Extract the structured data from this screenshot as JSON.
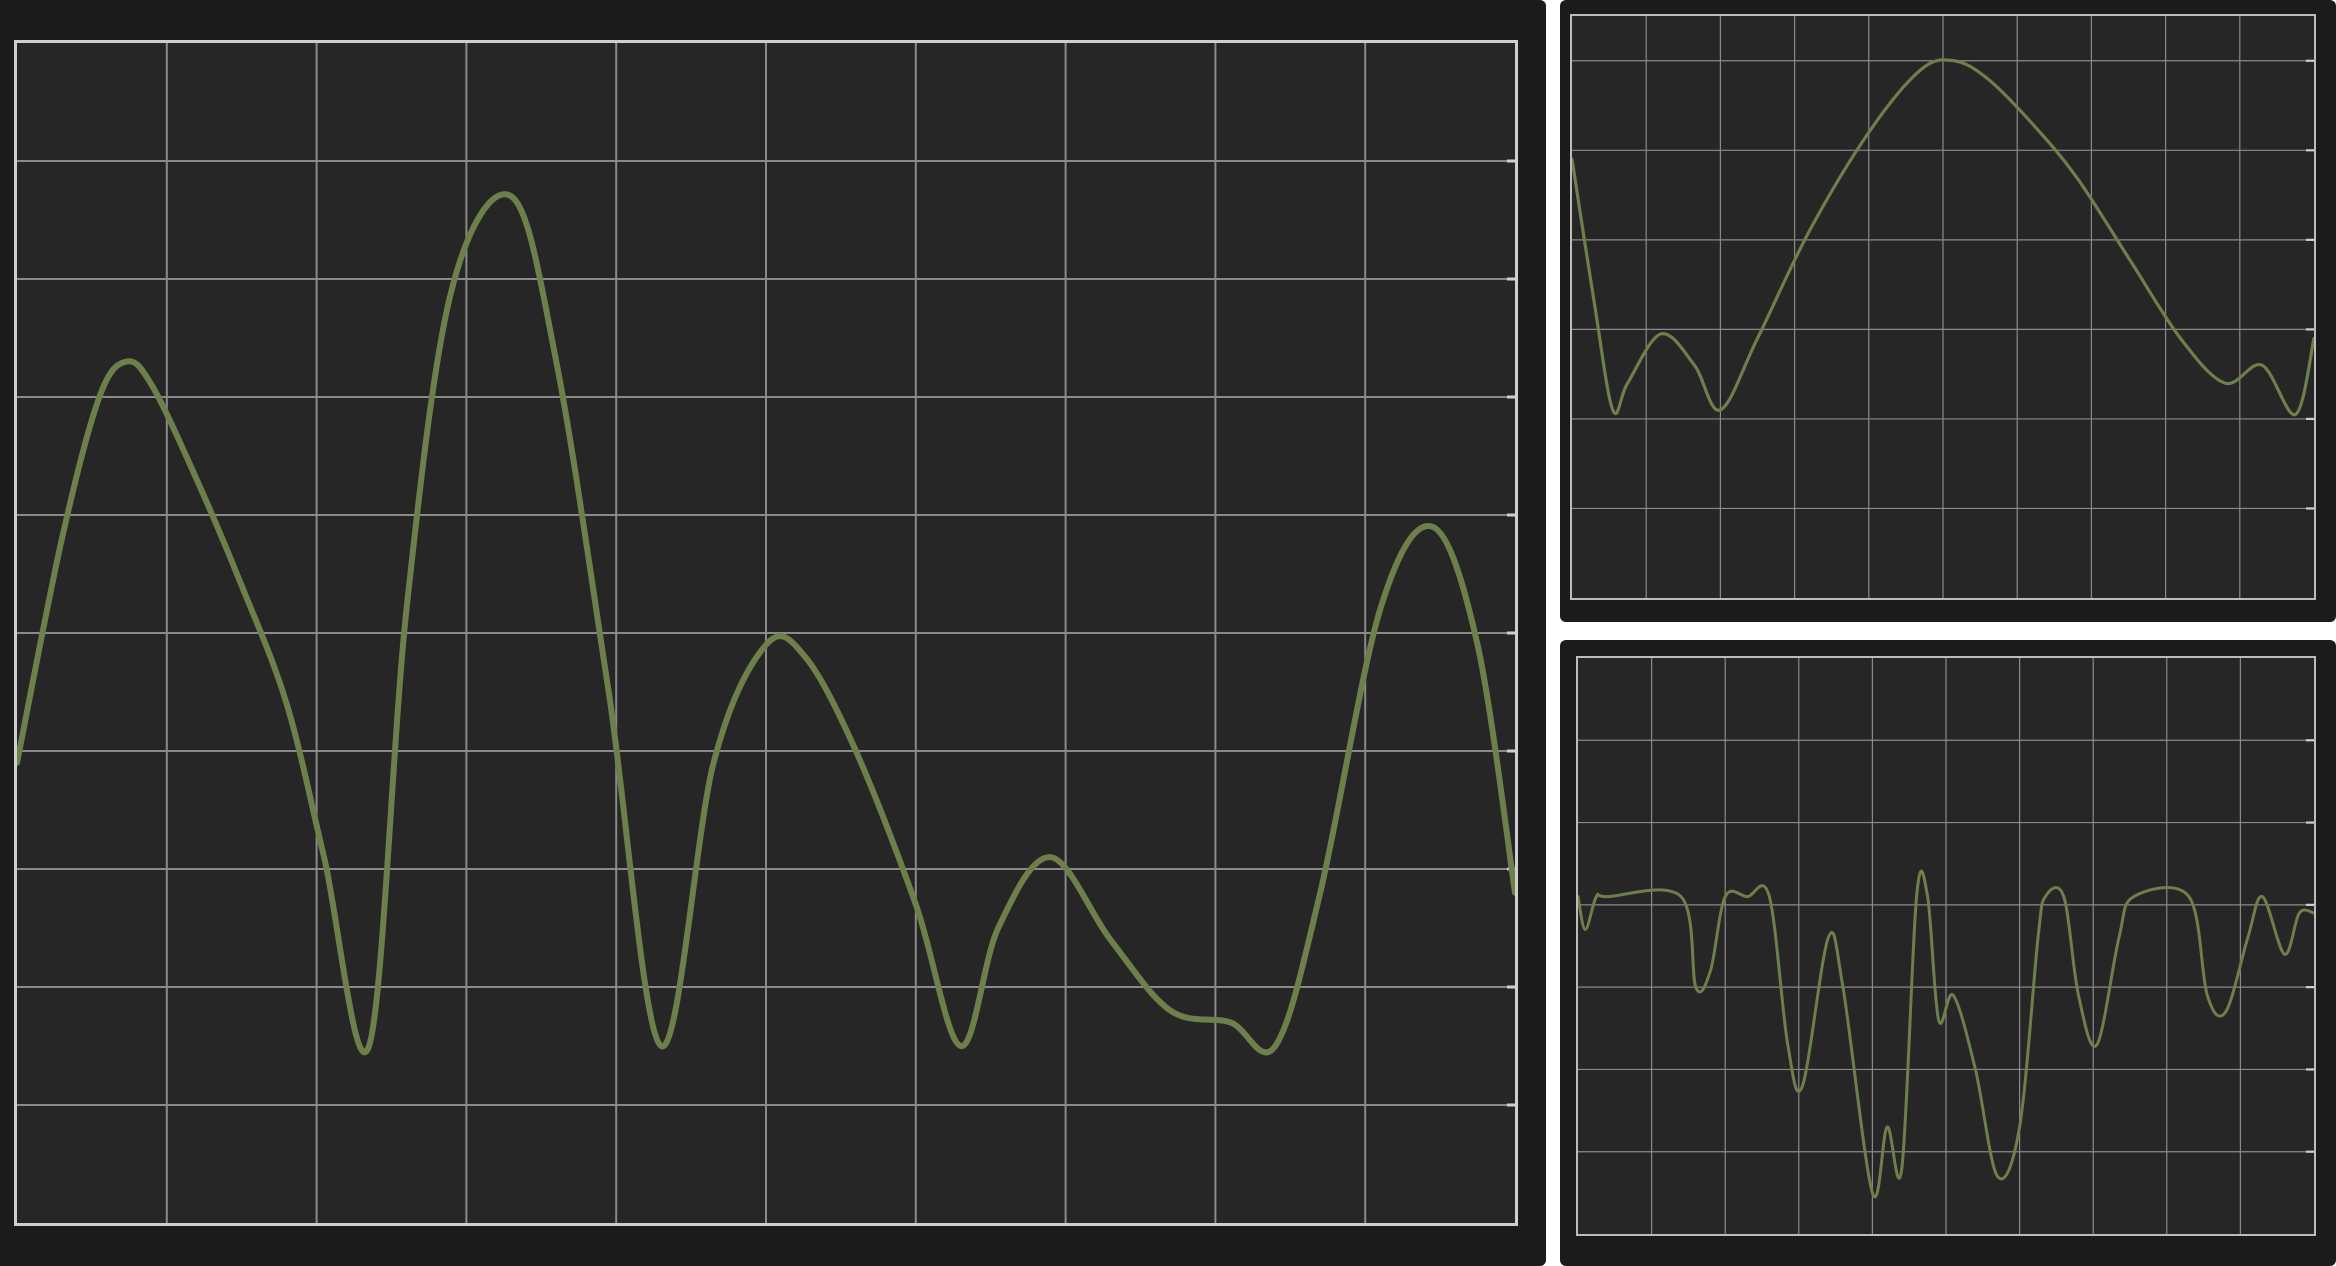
{
  "colors": {
    "background": "#1b1b1b",
    "plot_area": "#262626",
    "grid": "#8a8a8a",
    "frame": "#cfcfcf",
    "trace": "#6d7f4a"
  },
  "chart_data": [
    {
      "type": "line",
      "title": "",
      "xlabel": "",
      "ylabel": "",
      "xlim": [
        0,
        10
      ],
      "ylim": [
        0,
        10
      ],
      "grid": true,
      "legend": "none",
      "x_divisions": 10,
      "y_divisions": 10,
      "series": [
        {
          "values": [
            [
              0,
              3.9
            ],
            [
              0.3,
              5.8
            ],
            [
              0.55,
              7.0
            ],
            [
              0.73,
              7.3
            ],
            [
              0.9,
              7.1
            ],
            [
              1.2,
              6.3
            ],
            [
              1.5,
              5.4
            ],
            [
              1.8,
              4.4
            ],
            [
              2.05,
              3.1
            ],
            [
              2.35,
              1.5
            ],
            [
              2.6,
              5.2
            ],
            [
              2.9,
              7.9
            ],
            [
              3.3,
              8.7
            ],
            [
              3.6,
              7.3
            ],
            [
              3.95,
              4.5
            ],
            [
              4.3,
              1.5
            ],
            [
              4.65,
              3.9
            ],
            [
              5.0,
              4.9
            ],
            [
              5.26,
              4.8
            ],
            [
              5.6,
              4.0
            ],
            [
              6.0,
              2.7
            ],
            [
              6.3,
              1.5
            ],
            [
              6.55,
              2.5
            ],
            [
              6.9,
              3.1
            ],
            [
              7.3,
              2.4
            ],
            [
              7.7,
              1.8
            ],
            [
              8.1,
              1.7
            ],
            [
              8.4,
              1.5
            ],
            [
              8.7,
              2.8
            ],
            [
              9.1,
              5.2
            ],
            [
              9.45,
              5.9
            ],
            [
              9.75,
              4.9
            ],
            [
              10.0,
              2.8
            ]
          ]
        }
      ]
    },
    {
      "type": "line",
      "title": "",
      "xlabel": "",
      "ylabel": "",
      "xlim": [
        0,
        10
      ],
      "ylim": [
        0,
        6.5
      ],
      "grid": true,
      "legend": "none",
      "x_divisions": 10,
      "y_divisions": 6.5,
      "series": [
        {
          "values": [
            [
              0,
              4.9
            ],
            [
              0.3,
              3.3
            ],
            [
              0.55,
              2.1
            ],
            [
              0.75,
              2.4
            ],
            [
              1.2,
              2.95
            ],
            [
              1.65,
              2.6
            ],
            [
              2.0,
              2.1
            ],
            [
              2.5,
              2.9
            ],
            [
              3.2,
              4.1
            ],
            [
              4.0,
              5.2
            ],
            [
              4.7,
              5.9
            ],
            [
              5.15,
              6.0
            ],
            [
              5.6,
              5.8
            ],
            [
              6.2,
              5.3
            ],
            [
              6.8,
              4.7
            ],
            [
              7.5,
              3.8
            ],
            [
              8.2,
              2.9
            ],
            [
              8.8,
              2.4
            ],
            [
              9.3,
              2.6
            ],
            [
              9.75,
              2.05
            ],
            [
              10.0,
              2.9
            ]
          ]
        }
      ]
    },
    {
      "type": "line",
      "title": "",
      "xlabel": "",
      "ylabel": "",
      "xlim": [
        0,
        10
      ],
      "ylim": [
        0,
        7
      ],
      "grid": true,
      "legend": "none",
      "x_divisions": 10,
      "y_divisions": 7,
      "series": [
        {
          "values": [
            [
              0,
              4.1
            ],
            [
              0.1,
              3.7
            ],
            [
              0.25,
              4.1
            ],
            [
              0.4,
              4.1
            ],
            [
              1.4,
              4.1
            ],
            [
              1.6,
              3.0
            ],
            [
              1.8,
              3.2
            ],
            [
              2.0,
              4.1
            ],
            [
              2.3,
              4.1
            ],
            [
              2.6,
              4.1
            ],
            [
              2.85,
              2.3
            ],
            [
              3.05,
              1.8
            ],
            [
              3.4,
              3.6
            ],
            [
              3.6,
              3.0
            ],
            [
              4.0,
              0.5
            ],
            [
              4.2,
              1.3
            ],
            [
              4.4,
              0.8
            ],
            [
              4.6,
              4.1
            ],
            [
              4.75,
              4.1
            ],
            [
              4.9,
              2.6
            ],
            [
              5.1,
              2.9
            ],
            [
              5.4,
              2.0
            ],
            [
              5.7,
              0.7
            ],
            [
              6.0,
              1.3
            ],
            [
              6.25,
              3.6
            ],
            [
              6.35,
              4.1
            ],
            [
              6.6,
              4.1
            ],
            [
              6.8,
              2.9
            ],
            [
              7.05,
              2.3
            ],
            [
              7.35,
              3.6
            ],
            [
              7.55,
              4.1
            ],
            [
              8.3,
              4.1
            ],
            [
              8.55,
              2.9
            ],
            [
              8.8,
              2.7
            ],
            [
              9.1,
              3.6
            ],
            [
              9.3,
              4.1
            ],
            [
              9.6,
              3.4
            ],
            [
              9.8,
              3.9
            ],
            [
              10.0,
              3.9
            ]
          ]
        }
      ]
    }
  ]
}
